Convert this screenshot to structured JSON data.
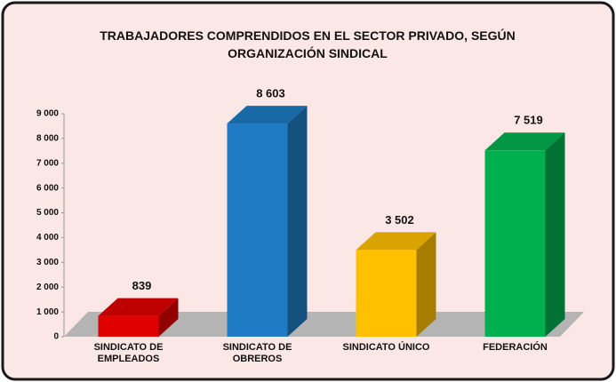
{
  "chart_data": {
    "type": "bar3d",
    "title": "TRABAJADORES COMPRENDIDOS EN EL SECTOR PRIVADO, SEGÚN ORGANIZACIÓN SINDICAL",
    "categories": [
      "SINDICATO DE EMPLEADOS",
      "SINDICATO DE OBREROS",
      "SINDICATO ÚNICO",
      "FEDERACIÓN"
    ],
    "values": [
      839,
      8603,
      3502,
      7519
    ],
    "value_labels": [
      "839",
      "8 603",
      "3 502",
      "7 519"
    ],
    "colors": [
      "#e00000",
      "#1f7cc4",
      "#ffc000",
      "#00b04f"
    ],
    "ylim": [
      0,
      9000
    ],
    "yticks": [
      0,
      {
        "value": 1000,
        "label": "1 000"
      },
      {
        "value": 2000,
        "label": "2 000"
      },
      {
        "value": 3000,
        "label": "3 000"
      },
      {
        "value": 4000,
        "label": "4 000"
      },
      {
        "value": 5000,
        "label": "5 000"
      },
      {
        "value": 6000,
        "label": "6 000"
      },
      {
        "value": 7000,
        "label": "7 000"
      },
      {
        "value": 8000,
        "label": "8 000"
      },
      {
        "value": 9000,
        "label": "9 000"
      }
    ],
    "grid": false
  }
}
